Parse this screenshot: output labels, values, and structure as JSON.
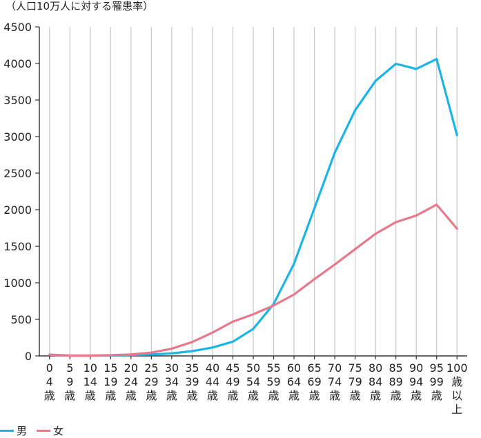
{
  "chart_data": {
    "type": "line",
    "unit_label": "（人口10万人に対する罹患率）",
    "categories": [
      [
        "0",
        "4",
        "歳"
      ],
      [
        "5",
        "9",
        "歳"
      ],
      [
        "10",
        "14",
        "歳"
      ],
      [
        "15",
        "19",
        "歳"
      ],
      [
        "20",
        "24",
        "歳"
      ],
      [
        "25",
        "29",
        "歳"
      ],
      [
        "30",
        "34",
        "歳"
      ],
      [
        "35",
        "39",
        "歳"
      ],
      [
        "40",
        "44",
        "歳"
      ],
      [
        "45",
        "49",
        "歳"
      ],
      [
        "50",
        "54",
        "歳"
      ],
      [
        "55",
        "59",
        "歳"
      ],
      [
        "60",
        "64",
        "歳"
      ],
      [
        "65",
        "69",
        "歳"
      ],
      [
        "70",
        "74",
        "歳"
      ],
      [
        "75",
        "79",
        "歳"
      ],
      [
        "80",
        "84",
        "歳"
      ],
      [
        "85",
        "89",
        "歳"
      ],
      [
        "90",
        "94",
        "歳"
      ],
      [
        "95",
        "99",
        "歳"
      ],
      [
        "100",
        "歳",
        "以",
        "上"
      ]
    ],
    "yticks": [
      0,
      500,
      1000,
      1500,
      2000,
      2500,
      3000,
      3500,
      4000,
      4500
    ],
    "ylim": [
      0,
      4500
    ],
    "grid": true,
    "legend_placement": "bottom-left",
    "series": [
      {
        "name": "男",
        "color": "#1bb4e6",
        "values": [
          18,
          5,
          5,
          6,
          12,
          20,
          35,
          65,
          115,
          195,
          370,
          710,
          1260,
          2020,
          2780,
          3360,
          3760,
          3995,
          3925,
          4060,
          3020
        ]
      },
      {
        "name": "女",
        "color": "#e8788a",
        "values": [
          15,
          5,
          5,
          10,
          20,
          45,
          100,
          190,
          320,
          470,
          570,
          690,
          840,
          1050,
          1250,
          1460,
          1670,
          1830,
          1920,
          2070,
          1740
        ]
      }
    ]
  }
}
